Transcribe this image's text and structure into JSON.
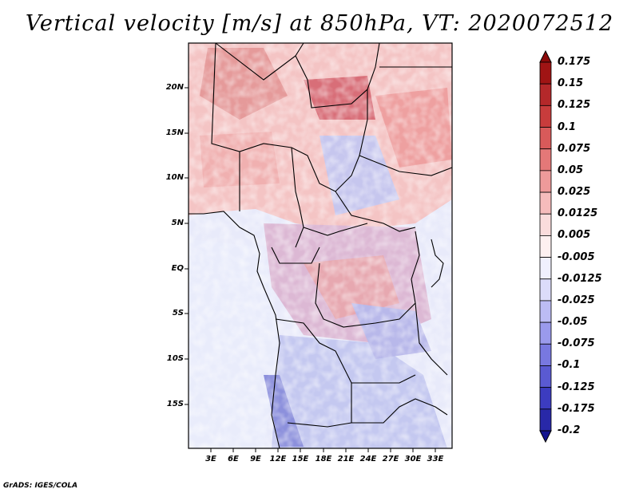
{
  "title": "Vertical velocity [m/s] at 850hPa, VT: 2020072512",
  "credit": "GrADS: IGES/COLA",
  "lat_labels": [
    "20N",
    "15N",
    "10N",
    "5N",
    "EQ",
    "5S",
    "10S",
    "15S"
  ],
  "lon_labels": [
    "3E",
    "6E",
    "9E",
    "12E",
    "15E",
    "18E",
    "21E",
    "24E",
    "27E",
    "30E",
    "33E"
  ],
  "colorbar": {
    "labels": [
      "0.175",
      "0.15",
      "0.125",
      "0.1",
      "0.075",
      "0.05",
      "0.025",
      "0.0125",
      "0.005",
      "-0.005",
      "-0.0125",
      "-0.025",
      "-0.05",
      "-0.075",
      "-0.1",
      "-0.125",
      "-0.175",
      "-0.2"
    ],
    "colors": [
      "#a01414",
      "#b4282a",
      "#c83c3c",
      "#d85a5a",
      "#e47878",
      "#ee9a9a",
      "#f6bcbc",
      "#fadcdc",
      "#fdf0f0",
      "#f0f0fd",
      "#dcdcfa",
      "#bcbcf4",
      "#9a9aec",
      "#7878e0",
      "#5a5ad2",
      "#3c3cc0",
      "#2828a8",
      "#141490"
    ]
  }
}
